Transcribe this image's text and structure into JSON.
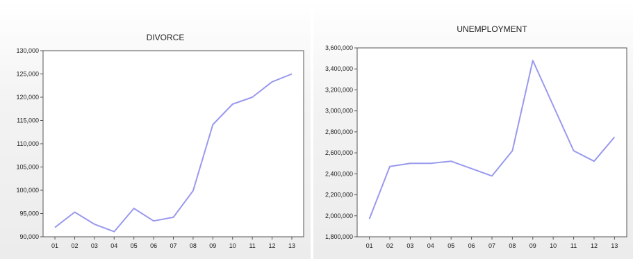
{
  "chart_data": [
    {
      "type": "line",
      "title": "DIVORCE",
      "xlabel": "",
      "ylabel": "",
      "categories": [
        "01",
        "02",
        "03",
        "04",
        "05",
        "06",
        "07",
        "08",
        "09",
        "10",
        "11",
        "12",
        "13"
      ],
      "series": [
        {
          "values": [
            92000,
            95300,
            92700,
            91100,
            96100,
            93400,
            94200,
            99900,
            114100,
            118500,
            120000,
            123300,
            125000
          ]
        }
      ],
      "ylim": [
        90000,
        130000
      ],
      "yticks": [
        90000,
        95000,
        100000,
        105000,
        110000,
        115000,
        120000,
        125000,
        130000
      ],
      "ytick_labels": [
        "90,000",
        "95,000",
        "100,000",
        "105,000",
        "110,000",
        "115,000",
        "120,000",
        "125,000",
        "130,000"
      ],
      "grid": false,
      "color": "#9999ee"
    },
    {
      "type": "line",
      "title": "UNEMPLOYMENT",
      "xlabel": "",
      "ylabel": "",
      "categories": [
        "01",
        "02",
        "03",
        "04",
        "05",
        "06",
        "07",
        "08",
        "09",
        "10",
        "11",
        "12",
        "13"
      ],
      "series": [
        {
          "values": [
            1970000,
            2470000,
            2500000,
            2500000,
            2520000,
            2450000,
            2380000,
            2620000,
            3480000,
            3050000,
            2620000,
            2520000,
            2750000
          ]
        }
      ],
      "ylim": [
        1800000,
        3600000
      ],
      "yticks": [
        1800000,
        2000000,
        2200000,
        2400000,
        2600000,
        2800000,
        3000000,
        3200000,
        3400000,
        3600000
      ],
      "ytick_labels": [
        "1,800,000",
        "2,000,000",
        "2,200,000",
        "2,400,000",
        "2,600,000",
        "2,800,000",
        "3,000,000",
        "3,200,000",
        "3,400,000",
        "3,600,000"
      ],
      "grid": false,
      "color": "#9999ee"
    }
  ]
}
